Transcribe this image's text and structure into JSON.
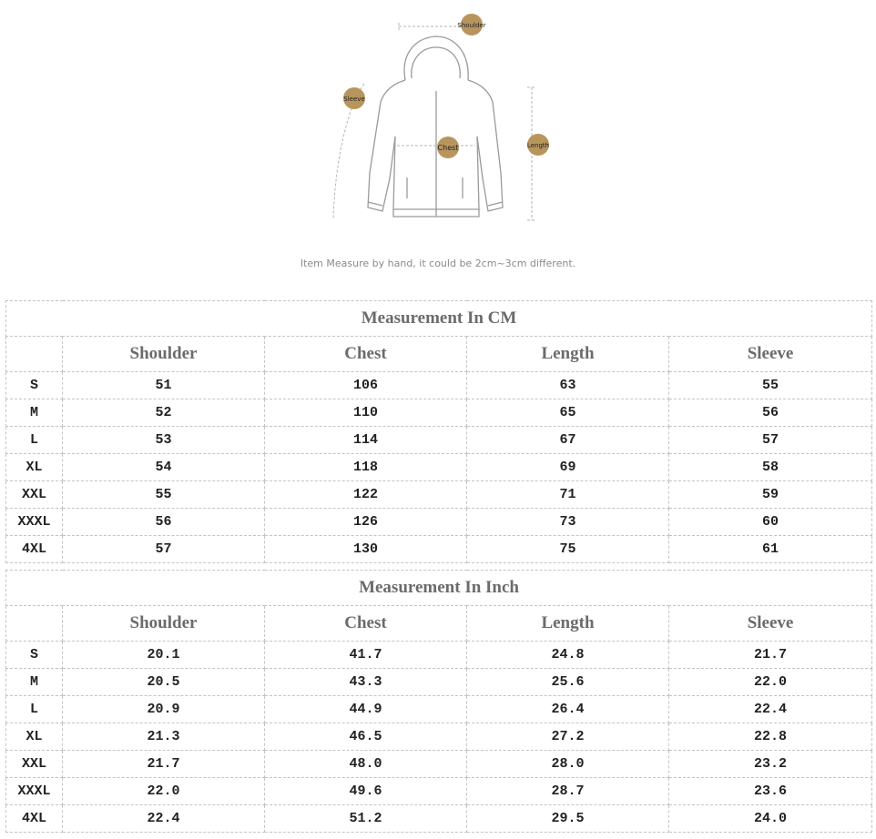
{
  "diagram": {
    "labels": {
      "shoulder": "Shoulder",
      "sleeve": "Sleeve",
      "chest": "Chest",
      "length": "Length"
    },
    "marker_color": "#b8955c",
    "note": "Item Measure by hand, it could be 2cm~3cm different."
  },
  "cm_table": {
    "title": "Measurement In CM",
    "headers": [
      "Shoulder",
      "Chest",
      "Length",
      "Sleeve"
    ],
    "rows": [
      {
        "size": "S",
        "values": [
          "51",
          "106",
          "63",
          "55"
        ]
      },
      {
        "size": "M",
        "values": [
          "52",
          "110",
          "65",
          "56"
        ]
      },
      {
        "size": "L",
        "values": [
          "53",
          "114",
          "67",
          "57"
        ]
      },
      {
        "size": "XL",
        "values": [
          "54",
          "118",
          "69",
          "58"
        ]
      },
      {
        "size": "XXL",
        "values": [
          "55",
          "122",
          "71",
          "59"
        ]
      },
      {
        "size": "XXXL",
        "values": [
          "56",
          "126",
          "73",
          "60"
        ]
      },
      {
        "size": "4XL",
        "values": [
          "57",
          "130",
          "75",
          "61"
        ]
      }
    ]
  },
  "inch_table": {
    "title": "Measurement In Inch",
    "headers": [
      "Shoulder",
      "Chest",
      "Length",
      "Sleeve"
    ],
    "rows": [
      {
        "size": "S",
        "values": [
          "20.1",
          "41.7",
          "24.8",
          "21.7"
        ]
      },
      {
        "size": "M",
        "values": [
          "20.5",
          "43.3",
          "25.6",
          "22.0"
        ]
      },
      {
        "size": "L",
        "values": [
          "20.9",
          "44.9",
          "26.4",
          "22.4"
        ]
      },
      {
        "size": "XL",
        "values": [
          "21.3",
          "46.5",
          "27.2",
          "22.8"
        ]
      },
      {
        "size": "XXL",
        "values": [
          "21.7",
          "48.0",
          "28.0",
          "23.2"
        ]
      },
      {
        "size": "XXXL",
        "values": [
          "22.0",
          "49.6",
          "28.7",
          "23.6"
        ]
      },
      {
        "size": "4XL",
        "values": [
          "22.4",
          "51.2",
          "29.5",
          "24.0"
        ]
      }
    ]
  }
}
